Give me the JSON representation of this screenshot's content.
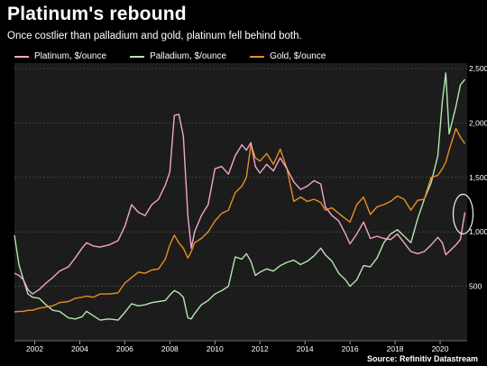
{
  "title": "Platinum's rebound",
  "subtitle": "Once costlier than palladium and gold, platinum fell behind both.",
  "source": "Source: Refinitiv Datastream",
  "colors": {
    "background": "#000000",
    "plot_background": "#1c1c1c",
    "platinum": "#f5a6c8",
    "palladium": "#b5e6b0",
    "gold": "#e58f22",
    "grid": "#555555"
  },
  "chart_data": {
    "type": "line",
    "title": "Platinum's rebound",
    "subtitle": "Once costlier than palladium and gold, platinum fell behind both.",
    "xlabel": "",
    "ylabel": "",
    "xlim": [
      2001.1,
      2021.2
    ],
    "ylim": [
      0,
      2550
    ],
    "x_ticks": [
      2002,
      2004,
      2006,
      2008,
      2010,
      2012,
      2014,
      2016,
      2018,
      2020
    ],
    "y_ticks": [
      500,
      1000,
      1500,
      2000,
      2500
    ],
    "y_tick_labels": [
      "500",
      "1,000",
      "1,500",
      "2,000",
      "2,500"
    ],
    "grid": "horizontal",
    "legend_position": "top-left",
    "annotation": "circle highlighting the recent platinum rise",
    "series": [
      {
        "name": "Platinum, $/ounce",
        "color": "#f5a6c8",
        "x": [
          2001.1,
          2001.3,
          2001.5,
          2001.7,
          2001.9,
          2002.2,
          2002.5,
          2002.8,
          2003.1,
          2003.5,
          2003.8,
          2004.1,
          2004.3,
          2004.6,
          2004.9,
          2005.3,
          2005.7,
          2006.0,
          2006.3,
          2006.6,
          2006.9,
          2007.2,
          2007.5,
          2007.8,
          2008.0,
          2008.2,
          2008.4,
          2008.6,
          2008.8,
          2008.95,
          2009.1,
          2009.4,
          2009.7,
          2010.0,
          2010.3,
          2010.6,
          2010.9,
          2011.2,
          2011.4,
          2011.6,
          2011.8,
          2012.0,
          2012.3,
          2012.6,
          2012.9,
          2013.2,
          2013.5,
          2013.8,
          2014.1,
          2014.4,
          2014.7,
          2014.9,
          2015.2,
          2015.5,
          2015.8,
          2016.0,
          2016.3,
          2016.6,
          2016.9,
          2017.2,
          2017.5,
          2017.8,
          2018.1,
          2018.4,
          2018.7,
          2019.0,
          2019.3,
          2019.6,
          2019.9,
          2020.1,
          2020.25,
          2020.4,
          2020.7,
          2020.9,
          2021.1
        ],
        "values": [
          620,
          600,
          560,
          470,
          430,
          470,
          530,
          580,
          640,
          680,
          760,
          850,
          900,
          870,
          860,
          880,
          920,
          1050,
          1250,
          1180,
          1150,
          1250,
          1300,
          1430,
          1550,
          2070,
          2080,
          1880,
          1150,
          850,
          1000,
          1150,
          1250,
          1580,
          1600,
          1530,
          1700,
          1800,
          1750,
          1820,
          1600,
          1540,
          1620,
          1560,
          1680,
          1580,
          1460,
          1390,
          1420,
          1470,
          1440,
          1230,
          1150,
          1100,
          980,
          890,
          980,
          1090,
          940,
          960,
          940,
          930,
          980,
          900,
          820,
          800,
          820,
          880,
          950,
          900,
          790,
          820,
          880,
          930,
          1180
        ]
      },
      {
        "name": "Palladium, $/ounce",
        "color": "#b5e6b0",
        "x": [
          2001.1,
          2001.3,
          2001.5,
          2001.7,
          2001.9,
          2002.2,
          2002.5,
          2002.8,
          2003.1,
          2003.5,
          2003.8,
          2004.1,
          2004.3,
          2004.6,
          2004.9,
          2005.3,
          2005.7,
          2006.0,
          2006.3,
          2006.6,
          2006.9,
          2007.2,
          2007.5,
          2007.8,
          2008.0,
          2008.2,
          2008.4,
          2008.6,
          2008.8,
          2008.95,
          2009.1,
          2009.4,
          2009.7,
          2010.0,
          2010.3,
          2010.6,
          2010.9,
          2011.2,
          2011.4,
          2011.6,
          2011.8,
          2012.0,
          2012.3,
          2012.6,
          2012.9,
          2013.2,
          2013.5,
          2013.8,
          2014.1,
          2014.4,
          2014.7,
          2014.9,
          2015.2,
          2015.5,
          2015.8,
          2016.0,
          2016.3,
          2016.6,
          2016.9,
          2017.2,
          2017.5,
          2017.8,
          2018.1,
          2018.4,
          2018.7,
          2019.0,
          2019.3,
          2019.6,
          2019.9,
          2020.1,
          2020.25,
          2020.4,
          2020.7,
          2020.9,
          2021.1
        ],
        "values": [
          970,
          700,
          560,
          430,
          400,
          390,
          330,
          280,
          270,
          210,
          200,
          220,
          270,
          230,
          190,
          200,
          190,
          260,
          340,
          320,
          330,
          350,
          360,
          370,
          420,
          460,
          440,
          400,
          210,
          200,
          250,
          330,
          370,
          430,
          460,
          500,
          770,
          750,
          800,
          730,
          600,
          630,
          660,
          640,
          690,
          720,
          740,
          700,
          730,
          780,
          850,
          790,
          730,
          620,
          560,
          500,
          560,
          690,
          680,
          760,
          900,
          980,
          1020,
          960,
          900,
          1120,
          1300,
          1450,
          1700,
          2200,
          2460,
          1900,
          2150,
          2350,
          2400
        ]
      },
      {
        "name": "Gold, $/ounce",
        "color": "#e58f22",
        "x": [
          2001.1,
          2001.3,
          2001.5,
          2001.7,
          2001.9,
          2002.2,
          2002.5,
          2002.8,
          2003.1,
          2003.5,
          2003.8,
          2004.1,
          2004.3,
          2004.6,
          2004.9,
          2005.3,
          2005.7,
          2006.0,
          2006.3,
          2006.6,
          2006.9,
          2007.2,
          2007.5,
          2007.8,
          2008.0,
          2008.2,
          2008.4,
          2008.6,
          2008.8,
          2008.95,
          2009.1,
          2009.4,
          2009.7,
          2010.0,
          2010.3,
          2010.6,
          2010.9,
          2011.2,
          2011.4,
          2011.6,
          2011.8,
          2012.0,
          2012.3,
          2012.6,
          2012.9,
          2013.2,
          2013.5,
          2013.8,
          2014.1,
          2014.4,
          2014.7,
          2014.9,
          2015.2,
          2015.5,
          2015.8,
          2016.0,
          2016.3,
          2016.6,
          2016.9,
          2017.2,
          2017.5,
          2017.8,
          2018.1,
          2018.4,
          2018.7,
          2019.0,
          2019.3,
          2019.6,
          2019.9,
          2020.1,
          2020.25,
          2020.4,
          2020.7,
          2020.9,
          2021.1
        ],
        "values": [
          265,
          270,
          270,
          280,
          280,
          300,
          310,
          320,
          350,
          360,
          390,
          400,
          410,
          400,
          430,
          430,
          440,
          530,
          580,
          630,
          620,
          650,
          660,
          750,
          880,
          970,
          900,
          850,
          760,
          820,
          900,
          940,
          1000,
          1100,
          1170,
          1200,
          1360,
          1420,
          1500,
          1800,
          1680,
          1650,
          1720,
          1620,
          1760,
          1580,
          1280,
          1320,
          1280,
          1300,
          1270,
          1200,
          1220,
          1170,
          1120,
          1090,
          1250,
          1320,
          1160,
          1230,
          1250,
          1280,
          1330,
          1300,
          1200,
          1290,
          1300,
          1500,
          1520,
          1580,
          1640,
          1750,
          1950,
          1870,
          1810
        ]
      }
    ]
  }
}
